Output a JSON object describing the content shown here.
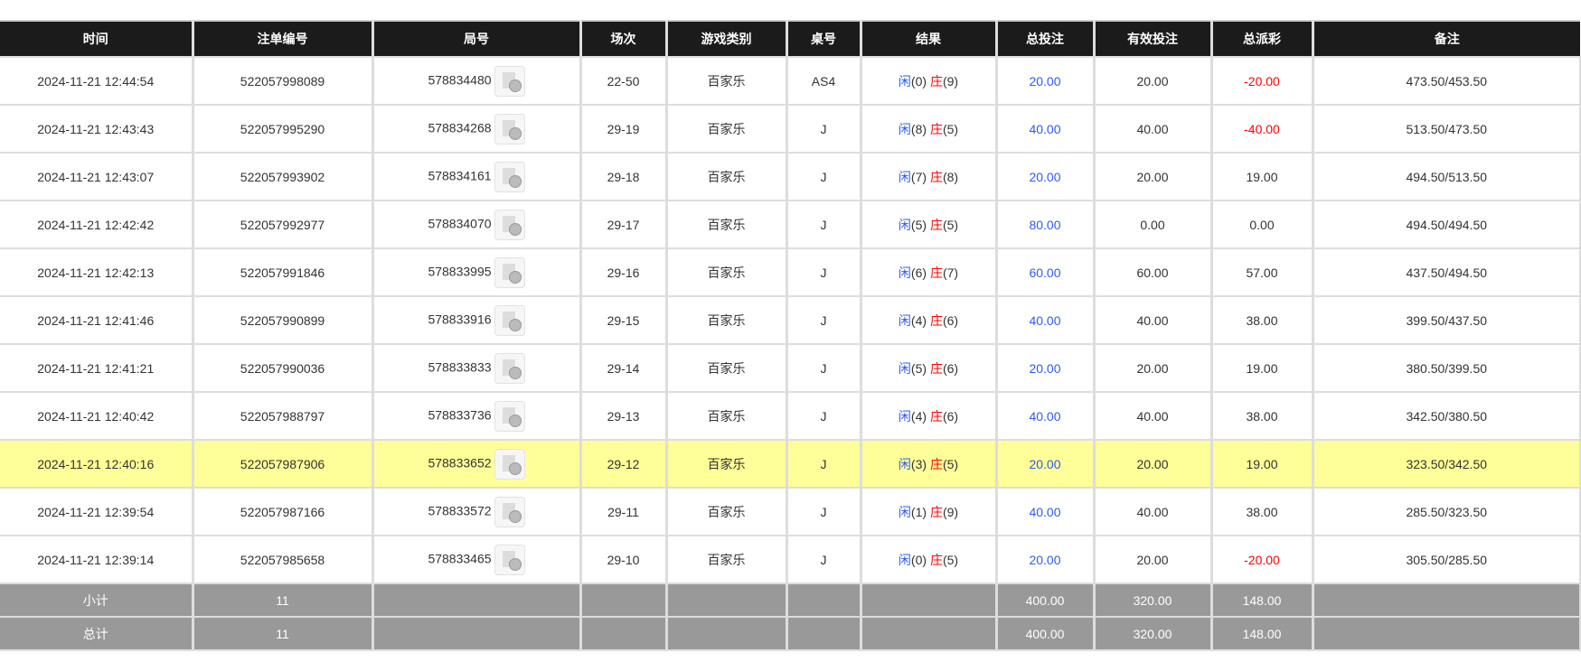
{
  "headers": [
    "时间",
    "注单编号",
    "局号",
    "场次",
    "游戏类别",
    "桌号",
    "结果",
    "总投注",
    "有效投注",
    "总派彩",
    "备注"
  ],
  "colors": {
    "header_bg": "#1b1b1b",
    "highlight": "#ffff99",
    "footer_bg": "#999999",
    "blue": "#2a5cf5",
    "red": "#ff0000"
  },
  "rows": [
    {
      "time": "2024-11-21 12:44:54",
      "bet_id": "522057998089",
      "round": "578834480",
      "shoe": "22-50",
      "game": "百家乐",
      "table": "AS4",
      "player": "闲",
      "player_score": "(0)",
      "banker": "庄",
      "banker_score": "(9)",
      "total_bet": "20.00",
      "valid_bet": "20.00",
      "payout": "-20.00",
      "note": "473.50/453.50"
    },
    {
      "time": "2024-11-21 12:43:43",
      "bet_id": "522057995290",
      "round": "578834268",
      "shoe": "29-19",
      "game": "百家乐",
      "table": "J",
      "player": "闲",
      "player_score": "(8)",
      "banker": "庄",
      "banker_score": "(5)",
      "total_bet": "40.00",
      "valid_bet": "40.00",
      "payout": "-40.00",
      "note": "513.50/473.50"
    },
    {
      "time": "2024-11-21 12:43:07",
      "bet_id": "522057993902",
      "round": "578834161",
      "shoe": "29-18",
      "game": "百家乐",
      "table": "J",
      "player": "闲",
      "player_score": "(7)",
      "banker": "庄",
      "banker_score": "(8)",
      "total_bet": "20.00",
      "valid_bet": "20.00",
      "payout": "19.00",
      "note": "494.50/513.50"
    },
    {
      "time": "2024-11-21 12:42:42",
      "bet_id": "522057992977",
      "round": "578834070",
      "shoe": "29-17",
      "game": "百家乐",
      "table": "J",
      "player": "闲",
      "player_score": "(5)",
      "banker": "庄",
      "banker_score": "(5)",
      "total_bet": "80.00",
      "valid_bet": "0.00",
      "payout": "0.00",
      "note": "494.50/494.50"
    },
    {
      "time": "2024-11-21 12:42:13",
      "bet_id": "522057991846",
      "round": "578833995",
      "shoe": "29-16",
      "game": "百家乐",
      "table": "J",
      "player": "闲",
      "player_score": "(6)",
      "banker": "庄",
      "banker_score": "(7)",
      "total_bet": "60.00",
      "valid_bet": "60.00",
      "payout": "57.00",
      "note": "437.50/494.50"
    },
    {
      "time": "2024-11-21 12:41:46",
      "bet_id": "522057990899",
      "round": "578833916",
      "shoe": "29-15",
      "game": "百家乐",
      "table": "J",
      "player": "闲",
      "player_score": "(4)",
      "banker": "庄",
      "banker_score": "(6)",
      "total_bet": "40.00",
      "valid_bet": "40.00",
      "payout": "38.00",
      "note": "399.50/437.50"
    },
    {
      "time": "2024-11-21 12:41:21",
      "bet_id": "522057990036",
      "round": "578833833",
      "shoe": "29-14",
      "game": "百家乐",
      "table": "J",
      "player": "闲",
      "player_score": "(5)",
      "banker": "庄",
      "banker_score": "(6)",
      "total_bet": "20.00",
      "valid_bet": "20.00",
      "payout": "19.00",
      "note": "380.50/399.50"
    },
    {
      "time": "2024-11-21 12:40:42",
      "bet_id": "522057988797",
      "round": "578833736",
      "shoe": "29-13",
      "game": "百家乐",
      "table": "J",
      "player": "闲",
      "player_score": "(4)",
      "banker": "庄",
      "banker_score": "(6)",
      "total_bet": "40.00",
      "valid_bet": "40.00",
      "payout": "38.00",
      "note": "342.50/380.50"
    },
    {
      "time": "2024-11-21 12:40:16",
      "bet_id": "522057987906",
      "round": "578833652",
      "shoe": "29-12",
      "game": "百家乐",
      "table": "J",
      "player": "闲",
      "player_score": "(3)",
      "banker": "庄",
      "banker_score": "(5)",
      "total_bet": "20.00",
      "valid_bet": "20.00",
      "payout": "19.00",
      "note": "323.50/342.50",
      "highlighted": true
    },
    {
      "time": "2024-11-21 12:39:54",
      "bet_id": "522057987166",
      "round": "578833572",
      "shoe": "29-11",
      "game": "百家乐",
      "table": "J",
      "player": "闲",
      "player_score": "(1)",
      "banker": "庄",
      "banker_score": "(9)",
      "total_bet": "40.00",
      "valid_bet": "40.00",
      "payout": "38.00",
      "note": "285.50/323.50"
    },
    {
      "time": "2024-11-21 12:39:14",
      "bet_id": "522057985658",
      "round": "578833465",
      "shoe": "29-10",
      "game": "百家乐",
      "table": "J",
      "player": "闲",
      "player_score": "(0)",
      "banker": "庄",
      "banker_score": "(5)",
      "total_bet": "20.00",
      "valid_bet": "20.00",
      "payout": "-20.00",
      "note": "305.50/285.50"
    }
  ],
  "footer": [
    {
      "label": "小计",
      "count": "11",
      "total_bet": "400.00",
      "valid_bet": "320.00",
      "payout": "148.00"
    },
    {
      "label": "总计",
      "count": "11",
      "total_bet": "400.00",
      "valid_bet": "320.00",
      "payout": "148.00"
    }
  ]
}
